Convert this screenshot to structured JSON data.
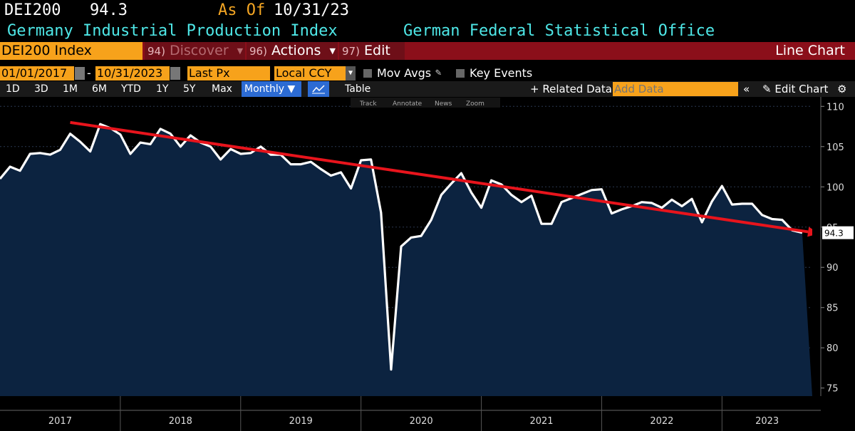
{
  "header": {
    "ticker": "DEI200",
    "last_value": "94.3",
    "as_of_label": "As Of",
    "as_of_date": "10/31/23",
    "security_name": "Germany Industrial Production Index",
    "source": "German Federal Statistical Office"
  },
  "toolbar": {
    "security": "DEI200 Index",
    "discover_num": "94)",
    "discover": "Discover",
    "actions_num": "96)",
    "actions": "Actions",
    "edit_num": "97)",
    "edit": "Edit",
    "chart_type": "Line Chart",
    "start_date": "01/01/2017",
    "end_date": "10/31/2023",
    "field": "Last Px",
    "currency": "Local CCY",
    "mov_avgs": "Mov Avgs",
    "key_events": "Key Events",
    "periods": [
      "1D",
      "3D",
      "1M",
      "6M",
      "YTD",
      "1Y",
      "5Y",
      "Max"
    ],
    "frequency": "Monthly",
    "table": "Table",
    "related_data": "Related Data",
    "add_data_placeholder": "Add Data",
    "edit_chart": "Edit Chart",
    "tools": [
      "Track",
      "Annotate",
      "News",
      "Zoom"
    ]
  },
  "colors": {
    "line": "#ffffff",
    "area": "#0c2340",
    "trend": "#e8141c",
    "accent_orange": "#f7a21b",
    "cyan": "#4ee7e7"
  },
  "chart_data": {
    "type": "line",
    "title": "",
    "xlabel": "",
    "ylabel": "",
    "x_start": "2017-01",
    "x_end": "2023-10",
    "x_ticks": [
      "2017",
      "2018",
      "2019",
      "2020",
      "2021",
      "2022",
      "2023"
    ],
    "ylim": [
      74,
      111
    ],
    "y_ticks": [
      75,
      80,
      85,
      90,
      95,
      100,
      105,
      110
    ],
    "last_value_label": "94.3",
    "series": [
      {
        "values": [
          101.0,
          102.5,
          102.0,
          104.1,
          104.2,
          104.0,
          104.6,
          106.6,
          105.6,
          104.4,
          107.8,
          107.3,
          106.5,
          104.1,
          105.5,
          105.3,
          107.2,
          106.6,
          105.0,
          106.4,
          105.5,
          105.0,
          103.4,
          104.7,
          104.1,
          104.2,
          105.0,
          104.0,
          104.0,
          102.8,
          102.8,
          103.1,
          102.2,
          101.4,
          101.8,
          99.8,
          103.3,
          103.4,
          96.8,
          77.3,
          92.6,
          93.7,
          93.9,
          95.9,
          99.0,
          100.4,
          101.7,
          99.3,
          97.4,
          100.8,
          100.3,
          99.0,
          98.1,
          98.9,
          95.4,
          95.4,
          98.1,
          98.6,
          99.1,
          99.6,
          99.7,
          96.7,
          97.2,
          97.6,
          98.1,
          98.0,
          97.4,
          98.4,
          97.6,
          98.5,
          95.6,
          98.2,
          100.1,
          97.8,
          97.9,
          97.9,
          96.5,
          96.0,
          95.9,
          94.6,
          94.3
        ]
      }
    ],
    "trendline": {
      "start": {
        "x": "2017-08",
        "y": 108.0
      },
      "end": {
        "x": "2023-10",
        "y": 94.2
      }
    }
  }
}
